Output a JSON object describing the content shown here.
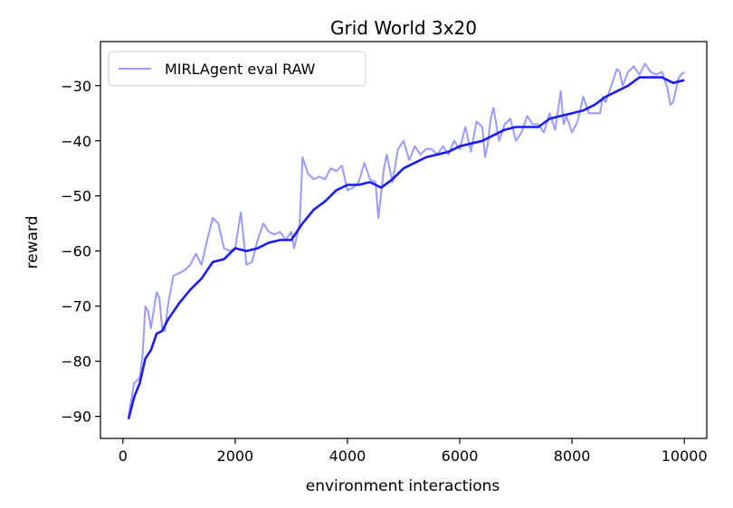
{
  "chart_data": {
    "type": "line",
    "title": "Grid World 3x20",
    "xlabel": "environment interactions",
    "ylabel": "reward",
    "xlim": [
      -400,
      10400
    ],
    "ylim": [
      -94,
      -22
    ],
    "xticks": [
      0,
      2000,
      4000,
      6000,
      8000,
      10000
    ],
    "yticks": [
      -90,
      -80,
      -70,
      -60,
      -50,
      -40,
      -30
    ],
    "ytick_labels": [
      "−90",
      "−80",
      "−70",
      "−60",
      "−50",
      "−40",
      "−30"
    ],
    "grid": false,
    "legend_position": "top-left",
    "colors": {
      "raw": "#9a9aff",
      "smoothed": "#1a1aff"
    },
    "series": [
      {
        "name": "MIRLAgent eval RAW",
        "points": [
          [
            100,
            -90.0
          ],
          [
            200,
            -84.0
          ],
          [
            300,
            -83.0
          ],
          [
            350,
            -79.0
          ],
          [
            400,
            -70.0
          ],
          [
            450,
            -71.0
          ],
          [
            500,
            -74.0
          ],
          [
            600,
            -67.5
          ],
          [
            650,
            -68.5
          ],
          [
            700,
            -74.0
          ],
          [
            750,
            -74.5
          ],
          [
            800,
            -70.0
          ],
          [
            900,
            -64.5
          ],
          [
            1000,
            -64.0
          ],
          [
            1100,
            -63.5
          ],
          [
            1200,
            -62.5
          ],
          [
            1300,
            -60.5
          ],
          [
            1400,
            -62.5
          ],
          [
            1500,
            -58.0
          ],
          [
            1600,
            -54.0
          ],
          [
            1700,
            -55.0
          ],
          [
            1800,
            -59.5
          ],
          [
            1900,
            -60.0
          ],
          [
            2000,
            -59.5
          ],
          [
            2100,
            -53.0
          ],
          [
            2200,
            -62.5
          ],
          [
            2300,
            -62.0
          ],
          [
            2400,
            -58.0
          ],
          [
            2500,
            -55.0
          ],
          [
            2600,
            -56.5
          ],
          [
            2700,
            -57.0
          ],
          [
            2800,
            -56.5
          ],
          [
            2900,
            -58.0
          ],
          [
            3000,
            -56.5
          ],
          [
            3050,
            -59.5
          ],
          [
            3150,
            -55.0
          ],
          [
            3200,
            -43.0
          ],
          [
            3300,
            -46.0
          ],
          [
            3400,
            -47.0
          ],
          [
            3500,
            -46.5
          ],
          [
            3600,
            -47.0
          ],
          [
            3700,
            -45.0
          ],
          [
            3800,
            -45.5
          ],
          [
            3900,
            -44.5
          ],
          [
            4000,
            -49.0
          ],
          [
            4100,
            -48.5
          ],
          [
            4200,
            -47.5
          ],
          [
            4300,
            -44.0
          ],
          [
            4400,
            -47.0
          ],
          [
            4500,
            -47.5
          ],
          [
            4550,
            -54.0
          ],
          [
            4650,
            -45.0
          ],
          [
            4700,
            -42.5
          ],
          [
            4800,
            -47.5
          ],
          [
            4900,
            -41.5
          ],
          [
            5000,
            -40.0
          ],
          [
            5100,
            -43.5
          ],
          [
            5200,
            -41.0
          ],
          [
            5300,
            -42.5
          ],
          [
            5400,
            -41.5
          ],
          [
            5500,
            -41.5
          ],
          [
            5600,
            -42.5
          ],
          [
            5700,
            -41.0
          ],
          [
            5800,
            -42.5
          ],
          [
            5900,
            -40.0
          ],
          [
            6000,
            -41.5
          ],
          [
            6100,
            -37.5
          ],
          [
            6200,
            -42.0
          ],
          [
            6300,
            -36.5
          ],
          [
            6400,
            -37.5
          ],
          [
            6450,
            -43.0
          ],
          [
            6500,
            -40.5
          ],
          [
            6550,
            -36.0
          ],
          [
            6600,
            -34.0
          ],
          [
            6700,
            -40.0
          ],
          [
            6800,
            -37.0
          ],
          [
            6900,
            -36.0
          ],
          [
            7000,
            -40.0
          ],
          [
            7100,
            -38.5
          ],
          [
            7200,
            -35.5
          ],
          [
            7300,
            -37.0
          ],
          [
            7400,
            -37.0
          ],
          [
            7500,
            -38.5
          ],
          [
            7600,
            -35.0
          ],
          [
            7700,
            -38.0
          ],
          [
            7800,
            -31.0
          ],
          [
            7850,
            -37.0
          ],
          [
            7900,
            -35.5
          ],
          [
            8000,
            -38.5
          ],
          [
            8100,
            -36.5
          ],
          [
            8200,
            -32.0
          ],
          [
            8300,
            -35.0
          ],
          [
            8400,
            -35.0
          ],
          [
            8500,
            -35.0
          ],
          [
            8550,
            -32.0
          ],
          [
            8600,
            -33.0
          ],
          [
            8700,
            -30.0
          ],
          [
            8800,
            -27.0
          ],
          [
            8850,
            -27.5
          ],
          [
            8900,
            -30.0
          ],
          [
            9000,
            -27.5
          ],
          [
            9100,
            -26.5
          ],
          [
            9200,
            -28.0
          ],
          [
            9300,
            -26.0
          ],
          [
            9400,
            -27.5
          ],
          [
            9500,
            -28.0
          ],
          [
            9600,
            -27.5
          ],
          [
            9700,
            -30.5
          ],
          [
            9750,
            -33.5
          ],
          [
            9800,
            -33.0
          ],
          [
            9900,
            -28.5
          ],
          [
            10000,
            -27.5
          ]
        ]
      },
      {
        "points": [
          [
            100,
            -90.5
          ],
          [
            200,
            -86.5
          ],
          [
            300,
            -84.0
          ],
          [
            400,
            -79.5
          ],
          [
            500,
            -78.0
          ],
          [
            600,
            -75.0
          ],
          [
            700,
            -74.5
          ],
          [
            800,
            -72.5
          ],
          [
            900,
            -71.0
          ],
          [
            1000,
            -69.5
          ],
          [
            1200,
            -67.0
          ],
          [
            1400,
            -65.0
          ],
          [
            1600,
            -62.0
          ],
          [
            1800,
            -61.5
          ],
          [
            2000,
            -59.5
          ],
          [
            2200,
            -60.0
          ],
          [
            2400,
            -59.5
          ],
          [
            2600,
            -58.5
          ],
          [
            2800,
            -58.0
          ],
          [
            3000,
            -58.0
          ],
          [
            3200,
            -55.0
          ],
          [
            3400,
            -52.5
          ],
          [
            3600,
            -51.0
          ],
          [
            3800,
            -49.0
          ],
          [
            4000,
            -48.0
          ],
          [
            4200,
            -48.0
          ],
          [
            4400,
            -47.5
          ],
          [
            4600,
            -48.5
          ],
          [
            4800,
            -47.0
          ],
          [
            5000,
            -45.0
          ],
          [
            5200,
            -44.0
          ],
          [
            5400,
            -43.0
          ],
          [
            5600,
            -42.5
          ],
          [
            5800,
            -42.0
          ],
          [
            6000,
            -41.0
          ],
          [
            6200,
            -40.5
          ],
          [
            6400,
            -40.0
          ],
          [
            6600,
            -39.0
          ],
          [
            6800,
            -38.0
          ],
          [
            7000,
            -37.5
          ],
          [
            7200,
            -37.5
          ],
          [
            7400,
            -37.5
          ],
          [
            7600,
            -36.0
          ],
          [
            7800,
            -35.5
          ],
          [
            8000,
            -35.0
          ],
          [
            8200,
            -34.5
          ],
          [
            8400,
            -33.5
          ],
          [
            8600,
            -32.0
          ],
          [
            8800,
            -31.0
          ],
          [
            9000,
            -30.0
          ],
          [
            9200,
            -28.5
          ],
          [
            9400,
            -28.5
          ],
          [
            9600,
            -28.5
          ],
          [
            9800,
            -29.5
          ],
          [
            10000,
            -29.0
          ]
        ]
      }
    ]
  }
}
